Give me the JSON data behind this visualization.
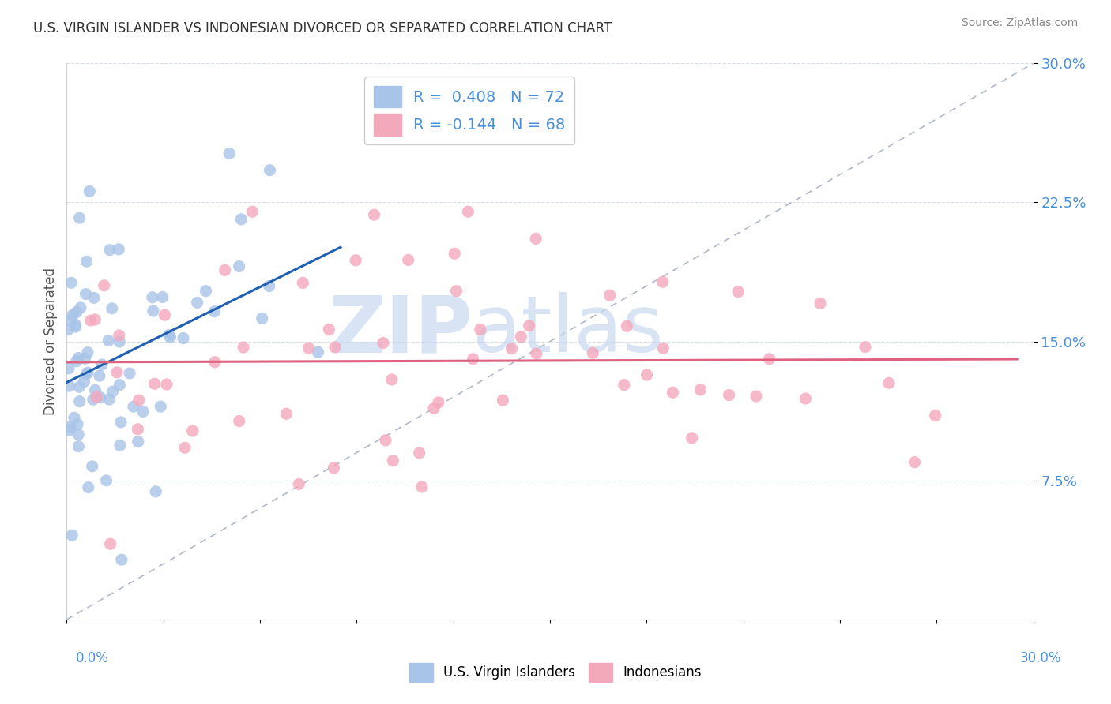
{
  "title": "U.S. VIRGIN ISLANDER VS INDONESIAN DIVORCED OR SEPARATED CORRELATION CHART",
  "source": "Source: ZipAtlas.com",
  "ylabel": "Divorced or Separated",
  "xlim": [
    0.0,
    0.3
  ],
  "ylim": [
    0.0,
    0.3
  ],
  "blue_R": 0.408,
  "blue_N": 72,
  "pink_R": -0.144,
  "pink_N": 68,
  "blue_color": "#a8c4e8",
  "pink_color": "#f4a8bc",
  "blue_line_color": "#2060b0",
  "pink_line_color": "#e06080",
  "ref_line_color": "#b0b8c8",
  "watermark_zip": "ZIP",
  "watermark_atlas": "atlas",
  "watermark_color": "#c8d8f0",
  "legend_label_blue": "U.S. Virgin Islanders",
  "legend_label_pink": "Indonesians",
  "background_color": "#ffffff",
  "grid_color": "#d8dde8",
  "ytick_color": "#4a90d9",
  "text_color": "#333333",
  "source_color": "#888888"
}
